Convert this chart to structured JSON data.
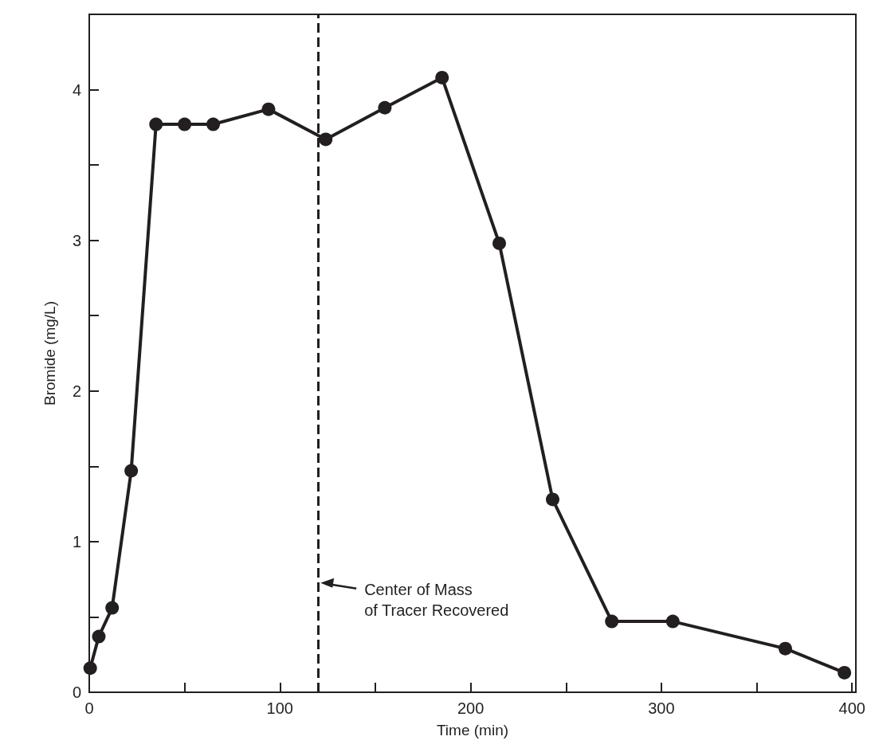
{
  "chart_data": {
    "type": "line",
    "xlabel": "Time (min)",
    "ylabel": "Bromide (mg/L)",
    "x": [
      0.5,
      5,
      12,
      22,
      35,
      50,
      65,
      94,
      124,
      155,
      185,
      215,
      243,
      274,
      306,
      365,
      396
    ],
    "series": [
      {
        "color": "#231f20",
        "values": [
          0.16,
          0.37,
          0.56,
          1.47,
          3.77,
          3.77,
          3.77,
          3.87,
          3.67,
          3.88,
          4.08,
          2.98,
          1.28,
          0.47,
          0.47,
          0.29,
          0.13
        ]
      }
    ],
    "xlim": [
      0,
      402
    ],
    "ylim": [
      0,
      4.5
    ],
    "xticks": [
      0,
      {
        "value": 50,
        "label": null
      },
      100,
      {
        "value": 150,
        "label": null
      },
      200,
      {
        "value": 250,
        "label": null
      },
      300,
      {
        "value": 350,
        "label": null
      },
      400
    ],
    "yticks": [
      0,
      {
        "value": 0.5,
        "label": null
      },
      1,
      {
        "value": 1.5,
        "label": null
      },
      2,
      {
        "value": 2.5,
        "label": null
      },
      3,
      {
        "value": 3.5,
        "label": null
      },
      4
    ],
    "ref_lines": [
      {
        "axis": "x",
        "value": 120,
        "label": "Center of Mass\nof Tracer Recovered",
        "color": "#231f20",
        "line_style": "dashed"
      }
    ],
    "grid": false,
    "marker": "circle",
    "line_style": "solid"
  }
}
